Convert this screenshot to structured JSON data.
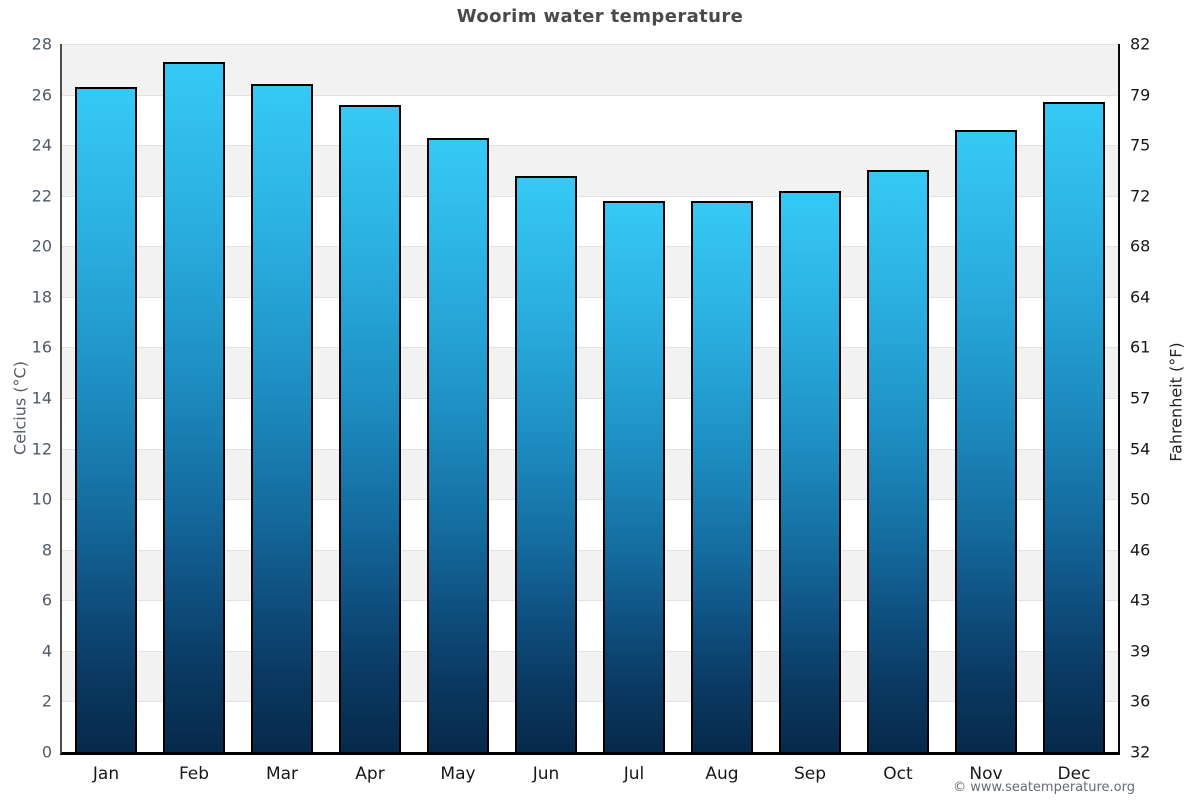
{
  "title": "Woorim water temperature",
  "axes": {
    "left_title": "Celcius (°C)",
    "right_title": "Fahrenheit (°F)",
    "celsius_ticks": [
      0,
      2,
      4,
      6,
      8,
      10,
      12,
      14,
      16,
      18,
      20,
      22,
      24,
      26,
      28
    ],
    "fahrenheit_tick_labels": [
      "32",
      "36",
      "39",
      "43",
      "46",
      "50",
      "54",
      "57",
      "61",
      "64",
      "68",
      "72",
      "75",
      "79",
      "82"
    ]
  },
  "chart_data": {
    "type": "bar",
    "title": "Woorim water temperature",
    "categories": [
      "Jan",
      "Feb",
      "Mar",
      "Apr",
      "May",
      "Jun",
      "Jul",
      "Aug",
      "Sep",
      "Oct",
      "Nov",
      "Dec"
    ],
    "values": [
      26.3,
      27.3,
      26.4,
      25.6,
      24.3,
      22.8,
      21.8,
      21.8,
      22.2,
      23.0,
      24.6,
      25.7
    ],
    "xlabel": "",
    "ylabel": "Celcius (°C)",
    "ylabel_secondary": "Fahrenheit (°F)",
    "ylim": [
      0,
      28
    ],
    "y2lim": [
      32,
      82
    ],
    "grid_step_celsius": 2,
    "grid": "horizontal gridlines with alternating gray/white bands every 2°C",
    "legend_position": "none"
  },
  "footer": {
    "credit": "© www.seatemperature.org"
  },
  "colors": {
    "bar_gradient_top": "#36c9f5",
    "bar_gradient_mid": "#1e8ec2",
    "bar_gradient_bottom": "#07294a",
    "bar_border": "#000000",
    "band_gray": "#f2f2f2",
    "band_white": "#ffffff",
    "gridline": "#e2e2e2",
    "axis_line": "#000000",
    "title_text": "#4a4a4a",
    "left_tick_text": "#4f5a66",
    "right_tick_text": "#16181a",
    "month_text": "#15181b",
    "credit_text": "#666c72"
  }
}
